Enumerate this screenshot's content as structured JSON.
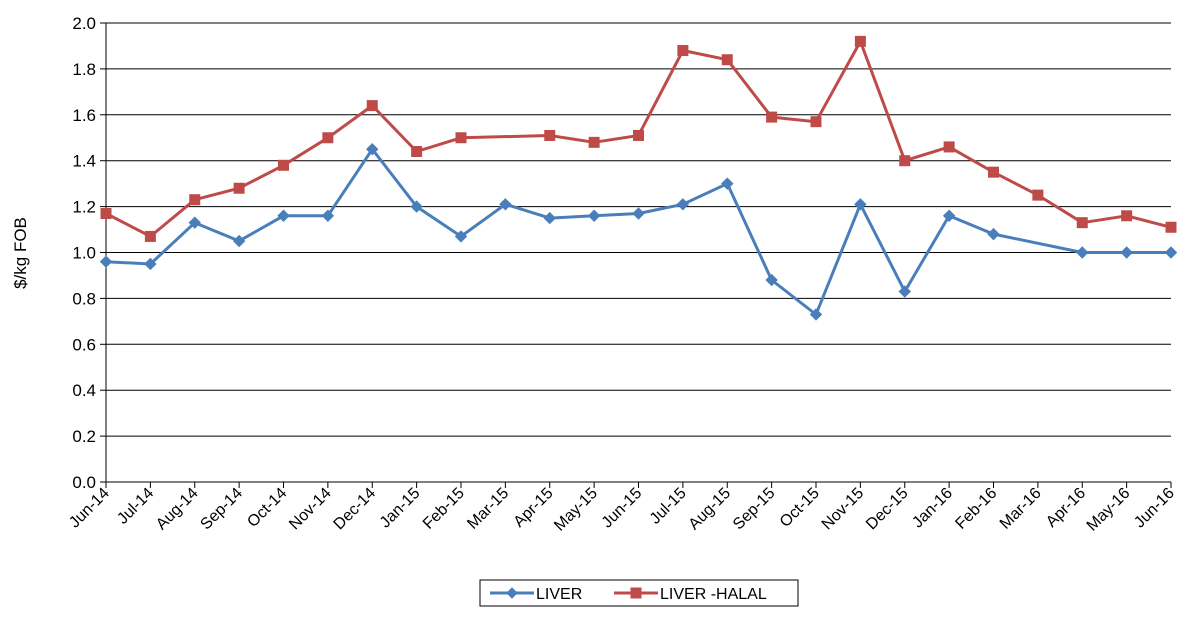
{
  "chart_data": {
    "type": "line",
    "title": "",
    "xlabel": "",
    "ylabel": "$/kg FOB",
    "categories": [
      "Jun-14",
      "Jul-14",
      "Aug-14",
      "Sep-14",
      "Oct-14",
      "Nov-14",
      "Dec-14",
      "Jan-15",
      "Feb-15",
      "Mar-15",
      "Apr-15",
      "May-15",
      "Jun-15",
      "Jul-15",
      "Aug-15",
      "Sep-15",
      "Oct-15",
      "Nov-15",
      "Dec-15",
      "Jan-16",
      "Feb-16",
      "Mar-16",
      "Apr-16",
      "May-16",
      "Jun-16"
    ],
    "ylim": [
      0,
      2.0
    ],
    "yticks": [
      "0.0",
      "0.2",
      "0.4",
      "0.6",
      "0.8",
      "1.0",
      "1.2",
      "1.4",
      "1.6",
      "1.8",
      "2.0"
    ],
    "grid": "horizontal",
    "legend_position": "bottom",
    "series": [
      {
        "name": "LIVER",
        "color": "#4a7ebb",
        "marker": "diamond",
        "values": [
          0.96,
          0.95,
          1.13,
          1.05,
          1.16,
          1.16,
          1.45,
          1.2,
          1.07,
          1.21,
          1.15,
          1.16,
          1.17,
          1.21,
          1.3,
          0.88,
          0.73,
          1.21,
          0.83,
          1.16,
          1.08,
          null,
          1.0,
          1.0,
          1.0
        ]
      },
      {
        "name": "LIVER -HALAL",
        "color": "#be4b48",
        "marker": "square",
        "values": [
          1.17,
          1.07,
          1.23,
          1.28,
          1.38,
          1.5,
          1.64,
          1.44,
          1.5,
          null,
          1.51,
          1.48,
          1.51,
          1.88,
          1.84,
          1.59,
          1.57,
          1.92,
          1.4,
          1.46,
          1.35,
          1.25,
          1.13,
          1.16,
          1.11
        ]
      }
    ]
  }
}
